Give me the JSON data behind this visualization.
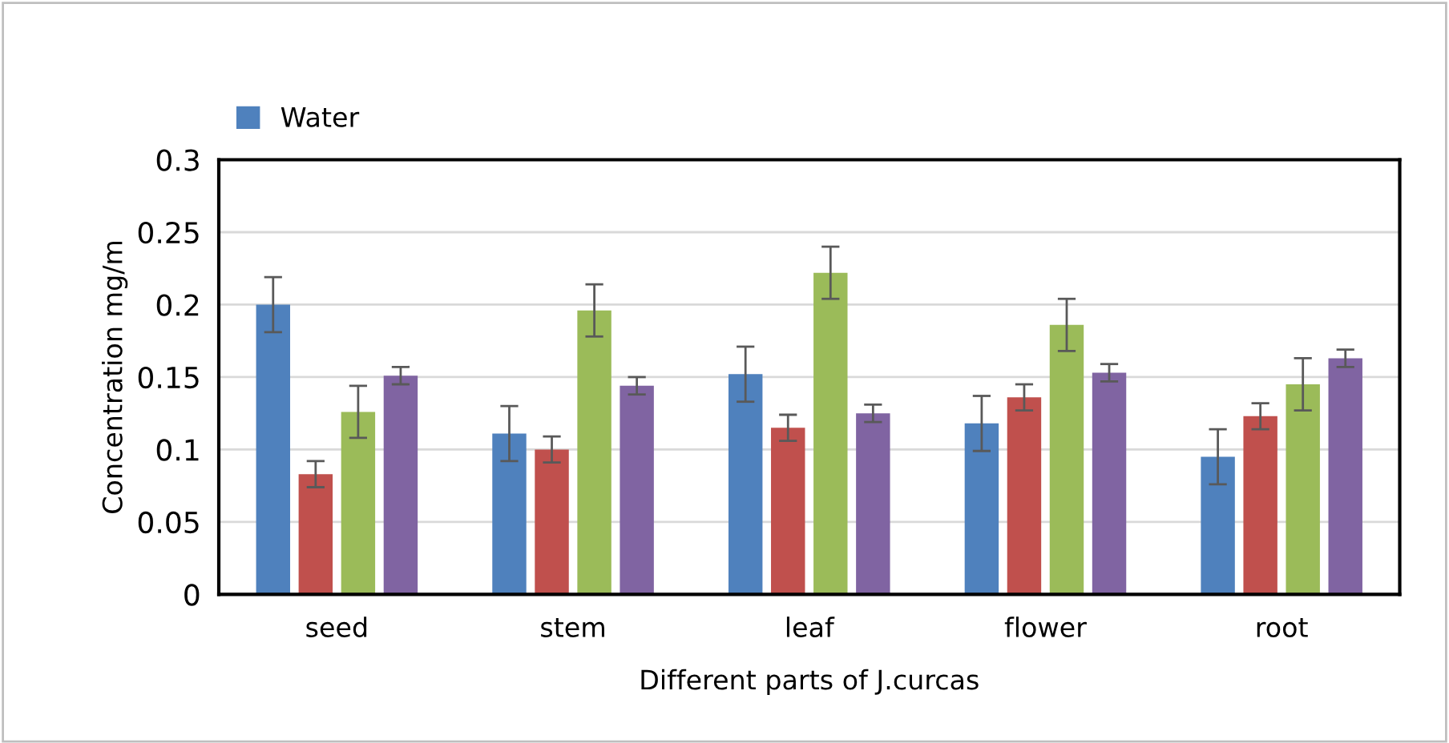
{
  "chart_data": {
    "type": "bar",
    "xlabel": "Different parts of J.curcas",
    "ylabel": "Concentration mg/m",
    "categories": [
      "seed",
      "stem",
      "leaf",
      "flower",
      "root"
    ],
    "series": [
      {
        "name": "Water",
        "color": "#4f81bd",
        "values": [
          0.2,
          0.111,
          0.152,
          0.118,
          0.095
        ],
        "errors": [
          0.019,
          0.019,
          0.019,
          0.019,
          0.019
        ]
      },
      {
        "color": "#c0504d",
        "values": [
          0.083,
          0.1,
          0.115,
          0.136,
          0.123
        ],
        "errors": [
          0.009,
          0.009,
          0.009,
          0.009,
          0.009
        ]
      },
      {
        "color": "#9bbb59",
        "values": [
          0.126,
          0.196,
          0.222,
          0.186,
          0.145
        ],
        "errors": [
          0.018,
          0.018,
          0.018,
          0.018,
          0.018
        ]
      },
      {
        "color": "#8064a2",
        "values": [
          0.151,
          0.144,
          0.125,
          0.153,
          0.163
        ],
        "errors": [
          0.006,
          0.006,
          0.006,
          0.006,
          0.006
        ]
      }
    ],
    "ylim": [
      0,
      0.3
    ],
    "yticks": [
      0,
      0.05,
      0.1,
      0.15,
      0.2,
      0.25,
      0.3
    ],
    "grid": "y",
    "legend": "top left"
  }
}
